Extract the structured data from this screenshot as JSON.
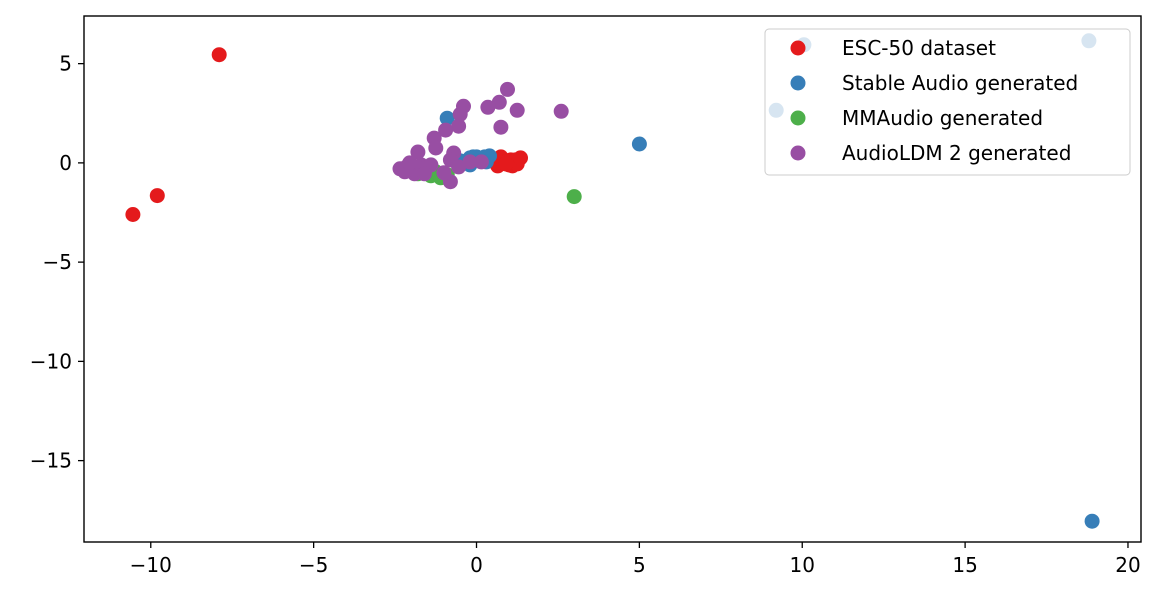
{
  "chart_data": {
    "type": "scatter",
    "title": "",
    "xlabel": "",
    "ylabel": "",
    "xlim": [
      -12.05,
      20.4
    ],
    "ylim": [
      -19.1,
      7.4
    ],
    "xticks": [
      -10,
      -5,
      0,
      5,
      10,
      15,
      20
    ],
    "xtick_labels": [
      "−10",
      "−5",
      "0",
      "5",
      "10",
      "15",
      "20"
    ],
    "yticks": [
      5,
      0,
      -5,
      -10,
      -15
    ],
    "ytick_labels": [
      "5",
      "0",
      "−5",
      "−10",
      "−15"
    ],
    "grid": false,
    "legend_position": "top-right",
    "series": [
      {
        "name": "ESC-50 dataset",
        "color": "#e41a1c",
        "points": [
          [
            -7.9,
            5.45
          ],
          [
            -9.8,
            -1.65
          ],
          [
            -10.55,
            -2.6
          ],
          [
            0.6,
            0.2
          ],
          [
            0.75,
            0.3
          ],
          [
            0.85,
            0.05
          ],
          [
            0.95,
            0.1
          ],
          [
            1.0,
            -0.1
          ],
          [
            1.05,
            0.15
          ],
          [
            1.1,
            -0.15
          ],
          [
            1.15,
            0.0
          ],
          [
            1.2,
            0.15
          ],
          [
            1.25,
            -0.05
          ],
          [
            1.35,
            0.25
          ],
          [
            0.65,
            -0.15
          ],
          [
            0.9,
            -0.05
          ]
        ]
      },
      {
        "name": "Stable Audio generated",
        "color": "#377eb8",
        "points": [
          [
            18.9,
            -18.05
          ],
          [
            5.0,
            0.95
          ],
          [
            9.2,
            2.65
          ],
          [
            10.05,
            5.95
          ],
          [
            18.8,
            6.15
          ],
          [
            -0.9,
            2.25
          ],
          [
            -0.5,
            0.1
          ],
          [
            -0.3,
            0.0
          ],
          [
            -0.2,
            0.25
          ],
          [
            -0.1,
            0.3
          ],
          [
            0.0,
            0.3
          ],
          [
            0.1,
            0.2
          ],
          [
            0.25,
            0.3
          ],
          [
            0.4,
            0.35
          ],
          [
            -0.2,
            -0.1
          ],
          [
            0.3,
            0.05
          ],
          [
            -0.6,
            0.15
          ],
          [
            0.15,
            0.1
          ]
        ]
      },
      {
        "name": "MMAudio generated",
        "color": "#4daf4a",
        "points": [
          [
            3.0,
            -1.7
          ],
          [
            -1.4,
            -0.65
          ],
          [
            -1.1,
            -0.75
          ],
          [
            -1.6,
            -0.5
          ],
          [
            -1.25,
            -0.45
          ],
          [
            -0.9,
            -0.6
          ],
          [
            -1.8,
            -0.55
          ]
        ]
      },
      {
        "name": "AudioLDM 2 generated",
        "color": "#984ea3",
        "points": [
          [
            2.6,
            2.6
          ],
          [
            1.25,
            2.65
          ],
          [
            0.95,
            3.7
          ],
          [
            0.7,
            3.05
          ],
          [
            0.35,
            2.8
          ],
          [
            0.75,
            1.8
          ],
          [
            -0.4,
            2.85
          ],
          [
            -0.5,
            2.45
          ],
          [
            -0.55,
            1.85
          ],
          [
            -0.95,
            1.65
          ],
          [
            -1.3,
            1.25
          ],
          [
            -1.25,
            0.75
          ],
          [
            -1.8,
            0.55
          ],
          [
            -0.7,
            0.5
          ],
          [
            -0.8,
            0.15
          ],
          [
            -0.55,
            -0.2
          ],
          [
            -0.8,
            -0.95
          ],
          [
            -1.0,
            -0.5
          ],
          [
            -2.35,
            -0.3
          ],
          [
            -2.15,
            -0.2
          ],
          [
            -2.0,
            -0.35
          ],
          [
            -1.9,
            -0.55
          ],
          [
            -1.7,
            -0.1
          ],
          [
            -1.55,
            -0.25
          ],
          [
            -1.4,
            -0.1
          ],
          [
            -2.2,
            -0.45
          ],
          [
            -1.6,
            -0.55
          ],
          [
            -2.05,
            0.0
          ],
          [
            -0.2,
            0.05
          ],
          [
            0.15,
            0.05
          ]
        ]
      }
    ]
  }
}
